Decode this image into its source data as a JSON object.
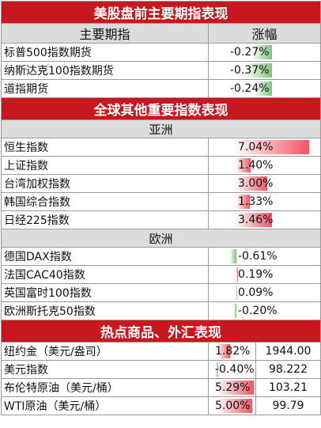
{
  "futures_section": {
    "title": "美股盘前主要期指表现",
    "col_index": "主要期指",
    "col_change": "涨幅",
    "rows": [
      {
        "name": "标普500指数期货",
        "change": "-0.27%",
        "pct": -0.27
      },
      {
        "name": "纳斯达克100指数期货",
        "change": "-0.37%",
        "pct": -0.37
      },
      {
        "name": "道指期货",
        "change": "-0.24%",
        "pct": -0.24
      }
    ]
  },
  "global_section": {
    "title": "全球其他重要指数表现",
    "asia_label": "亚洲",
    "asia_rows": [
      {
        "name": "恒生指数",
        "change": "7.04%",
        "pct": 7.04
      },
      {
        "name": "上证指数",
        "change": "1.40%",
        "pct": 1.4
      },
      {
        "name": "台湾加权指数",
        "change": "3.00%",
        "pct": 3.0
      },
      {
        "name": "韩国综合指数",
        "change": "1.33%",
        "pct": 1.33
      },
      {
        "name": "日经225指数",
        "change": "3.46%",
        "pct": 3.46
      }
    ],
    "europe_label": "欧洲",
    "europe_rows": [
      {
        "name": "德国DAX指数",
        "change": "-0.61%",
        "pct": -0.61
      },
      {
        "name": "法国CAC40指数",
        "change": "0.19%",
        "pct": 0.19
      },
      {
        "name": "英国富时100指数",
        "change": "0.09%",
        "pct": 0.09
      },
      {
        "name": "欧洲斯托克50指数",
        "change": "-0.20%",
        "pct": -0.2
      }
    ]
  },
  "commodities_section": {
    "title": "热点商品、外汇表现",
    "rows": [
      {
        "name": "纽约金（美元/盎司）",
        "change": "1.82%",
        "pct": 1.82,
        "price": "1944.00"
      },
      {
        "name": "美元指数",
        "change": "-0.40%",
        "pct": -0.4,
        "price": "98.222"
      },
      {
        "name": "布伦特原油（美元/桶）",
        "change": "5.29%",
        "pct": 5.29,
        "price": "103.21"
      },
      {
        "name": "WTI原油（美元/桶）",
        "change": "5.00%",
        "pct": 5.0,
        "price": "99.79"
      }
    ]
  },
  "colors": {
    "banner": "#c8171f",
    "header_gray": "#dcdcdc",
    "positive_bar": "#f25562",
    "negative_bar": "#7cc576"
  }
}
